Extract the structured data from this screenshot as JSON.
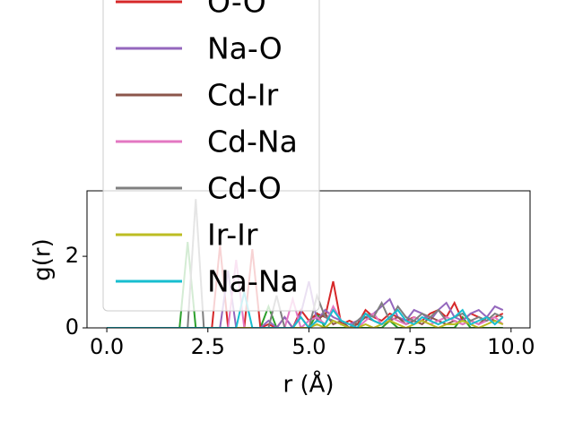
{
  "chart_data": {
    "type": "line",
    "xlabel": "r (Å)",
    "ylabel": "g(r)",
    "xlim": [
      -0.49,
      10.47
    ],
    "ylim": [
      0,
      3.83
    ],
    "xticks": [
      {
        "value": 0,
        "label": "0.0"
      },
      {
        "value": 2.5,
        "label": "2.5"
      },
      {
        "value": 5,
        "label": "5.0"
      },
      {
        "value": 7.5,
        "label": "7.5"
      },
      {
        "value": 10,
        "label": "10.0"
      }
    ],
    "yticks": [
      0,
      2
    ],
    "x": [
      0,
      0.2,
      0.4,
      0.6,
      0.8,
      1.0,
      1.2,
      1.4,
      1.6,
      1.8,
      2.0,
      2.2,
      2.4,
      2.6,
      2.8,
      3.0,
      3.2,
      3.4,
      3.6,
      3.8,
      4.0,
      4.2,
      4.4,
      4.6,
      4.8,
      5.0,
      5.2,
      5.4,
      5.6,
      5.8,
      6.0,
      6.2,
      6.4,
      6.6,
      6.8,
      7.0,
      7.2,
      7.4,
      7.6,
      7.8,
      8.0,
      8.2,
      8.4,
      8.6,
      8.8,
      9.0,
      9.2,
      9.4,
      9.6,
      9.8
    ],
    "series": [
      {
        "color": "#2ca02c",
        "values": [
          0,
          0,
          0,
          0,
          0,
          0,
          0,
          0,
          0,
          0,
          2.4,
          0,
          0,
          0,
          0,
          0,
          0,
          0,
          0,
          0,
          0.6,
          0,
          0,
          0,
          0,
          0,
          0.4,
          0,
          0,
          0,
          0,
          0,
          0,
          0,
          0,
          0.2,
          0,
          0,
          0,
          0,
          0,
          0,
          0,
          0,
          0.3,
          0,
          0,
          0,
          0,
          0
        ]
      },
      {
        "name": "O-O",
        "color": "#d62728",
        "values": [
          0,
          0,
          0,
          0,
          0,
          0,
          0,
          0,
          0,
          0,
          0,
          0,
          0,
          0,
          2.3,
          0,
          0,
          0,
          2.2,
          0,
          0.1,
          0,
          0.3,
          0,
          0.5,
          0.2,
          0.4,
          0.3,
          1.3,
          0.1,
          0.2,
          0.1,
          0.5,
          0.3,
          0.2,
          0.4,
          0.3,
          0.2,
          0.3,
          0.2,
          0.4,
          0.5,
          0.3,
          0.7,
          0.2,
          0.4,
          0.3,
          0.2,
          0.3,
          0.4
        ]
      },
      {
        "name": "Na-O",
        "color": "#9467bd",
        "values": [
          0,
          0,
          0,
          0,
          0,
          0,
          0,
          0,
          0,
          0,
          0,
          0,
          0,
          0,
          0,
          1.6,
          0,
          0,
          0,
          0,
          0.2,
          0,
          0.3,
          0,
          0.4,
          1.3,
          0.2,
          0.5,
          0.3,
          0.2,
          0.1,
          0.2,
          0.3,
          0.4,
          0.6,
          0.8,
          0.3,
          0.2,
          0.5,
          0.4,
          0.2,
          0.5,
          0.7,
          0.3,
          0.2,
          0.4,
          0.5,
          0.3,
          0.6,
          0.5
        ]
      },
      {
        "name": "Cd-Ir",
        "color": "#8c564b",
        "values": [
          0,
          0,
          0,
          0,
          0,
          0,
          0,
          0,
          0,
          0,
          0,
          0,
          0,
          0,
          0,
          0,
          0,
          0,
          0,
          0,
          0,
          0,
          0,
          0,
          0.3,
          0,
          0.2,
          0.4,
          0.1,
          0.2,
          0,
          0.1,
          0.3,
          0.2,
          0.1,
          0.2,
          0.3,
          0.1,
          0.2,
          0.1,
          0.3,
          0.2,
          0.1,
          0.2,
          0.1,
          0.2,
          0.1,
          0.3,
          0.2,
          0.1
        ]
      },
      {
        "name": "Cd-Na",
        "color": "#e377c2",
        "values": [
          0,
          0,
          0,
          0,
          0,
          0,
          0,
          0,
          0,
          0,
          0,
          0,
          0,
          0,
          0,
          0,
          1.9,
          0,
          0,
          0,
          0,
          0,
          0,
          0.8,
          0,
          0.2,
          0.3,
          0.1,
          0.6,
          0.2,
          0.1,
          0,
          0.2,
          0.4,
          0.1,
          0.3,
          0.2,
          0.1,
          0.3,
          0.2,
          0.1,
          0.2,
          0.3,
          0.2,
          0.1,
          0.2,
          0.1,
          0.2,
          0.3,
          0.1
        ]
      },
      {
        "name": "Cd-O",
        "color": "#7f7f7f",
        "values": [
          0,
          0,
          0,
          0,
          0,
          0,
          0,
          0,
          0,
          0,
          0,
          3.6,
          0,
          0,
          0,
          0,
          0,
          0,
          0,
          0,
          0,
          0.9,
          0,
          0,
          0,
          0,
          0.9,
          0.3,
          0.2,
          0.1,
          0,
          0.2,
          0.4,
          0.3,
          0.7,
          0.2,
          0.6,
          0.3,
          0.2,
          0.4,
          0.3,
          0.5,
          0.2,
          0.3,
          0.4,
          0.2,
          0.3,
          0.2,
          0.4,
          0.3
        ]
      },
      {
        "name": "Ir-Ir",
        "color": "#bcbd22",
        "values": [
          0,
          0,
          0,
          0,
          0,
          0,
          0,
          0,
          0,
          0,
          0,
          0,
          0,
          0,
          0,
          0,
          0,
          0,
          0,
          0,
          0,
          0,
          0,
          0,
          0,
          0,
          0.1,
          0,
          0.2,
          0.1,
          0,
          0,
          0.1,
          0,
          0.1,
          0.2,
          0.1,
          0,
          0.1,
          0.2,
          0.1,
          0,
          0.1,
          0.1,
          0.2,
          0.1,
          0,
          0.1,
          0.2,
          0.1
        ]
      },
      {
        "name": "Na-Na",
        "color": "#17becf",
        "values": [
          0,
          0,
          0,
          0,
          0,
          0,
          0,
          0,
          0,
          0,
          0,
          0,
          0,
          0,
          0,
          0,
          0,
          1.0,
          0,
          0,
          0,
          0,
          0,
          0,
          0.3,
          0,
          0.2,
          0.1,
          0.5,
          0.2,
          0.1,
          0,
          0.4,
          0.2,
          0.1,
          0.3,
          0.5,
          0.2,
          0.1,
          0.3,
          0.2,
          0.1,
          0.2,
          0.3,
          0.5,
          0.1,
          0.2,
          0.3,
          0.1,
          0.3
        ]
      }
    ]
  }
}
